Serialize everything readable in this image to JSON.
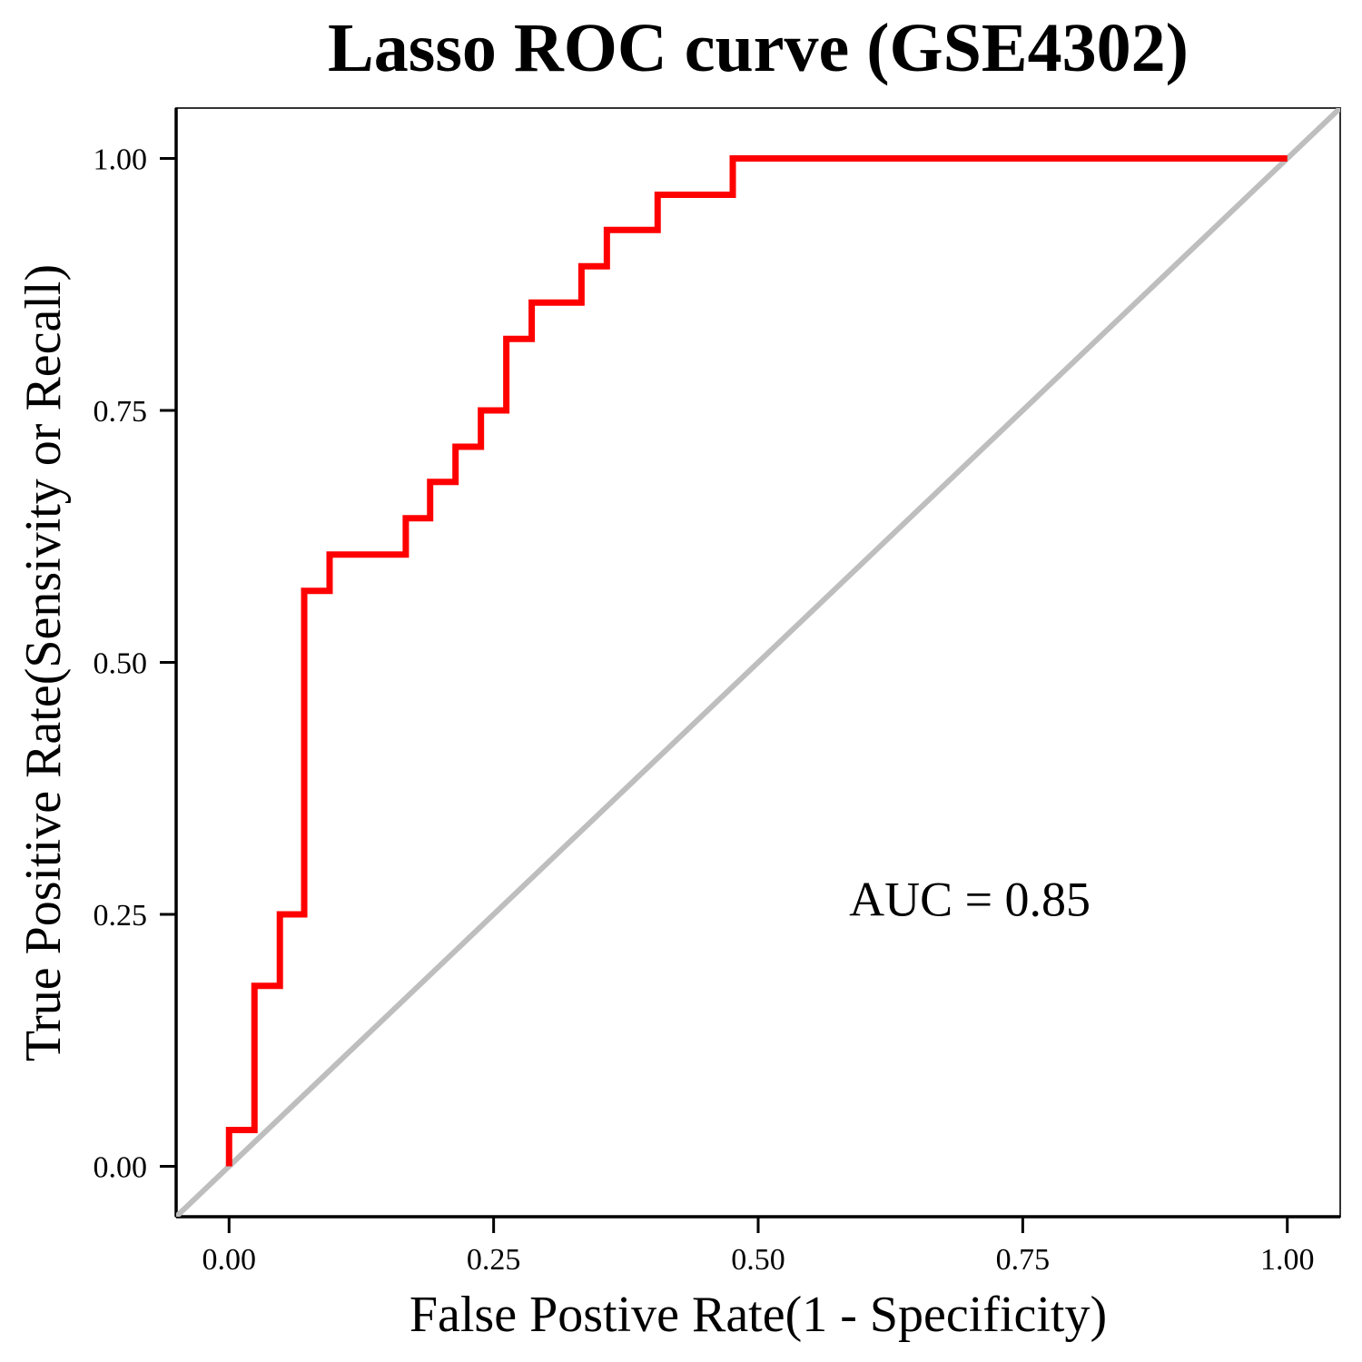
{
  "chart_data": {
    "type": "line",
    "title": "Lasso ROC curve (GSE4302)",
    "xlabel": "False Postive Rate(1 - Specificity)",
    "ylabel": "True Positive Rate(Sensivity or Recall)",
    "xlim": [
      -0.05,
      1.05
    ],
    "ylim": [
      -0.05,
      1.05
    ],
    "x_ticks": [
      0.0,
      0.25,
      0.5,
      0.75,
      1.0
    ],
    "x_tick_labels": [
      "0.00",
      "0.25",
      "0.50",
      "0.75",
      "1.00"
    ],
    "y_ticks": [
      0.0,
      0.25,
      0.5,
      0.75,
      1.0
    ],
    "y_tick_labels": [
      "0.00",
      "0.25",
      "0.50",
      "0.75",
      "1.00"
    ],
    "grid": false,
    "annotation": "AUC = 0.85",
    "series": [
      {
        "color": "#ff0000",
        "x": [
          0.0,
          0.0,
          0.024,
          0.024,
          0.048,
          0.048,
          0.071,
          0.071,
          0.095,
          0.095,
          0.167,
          0.167,
          0.19,
          0.19,
          0.214,
          0.214,
          0.238,
          0.238,
          0.262,
          0.262,
          0.286,
          0.286,
          0.333,
          0.333,
          0.357,
          0.357,
          0.405,
          0.405,
          0.476,
          0.476,
          1.0
        ],
        "y": [
          0.0,
          0.036,
          0.036,
          0.179,
          0.179,
          0.25,
          0.25,
          0.571,
          0.571,
          0.607,
          0.607,
          0.643,
          0.643,
          0.679,
          0.679,
          0.714,
          0.714,
          0.75,
          0.75,
          0.821,
          0.821,
          0.857,
          0.857,
          0.893,
          0.893,
          0.929,
          0.929,
          0.964,
          0.964,
          1.0,
          1.0
        ]
      },
      {
        "color": "#bebebe",
        "x": [
          -0.05,
          1.05
        ],
        "y": [
          -0.05,
          1.05
        ]
      }
    ]
  }
}
